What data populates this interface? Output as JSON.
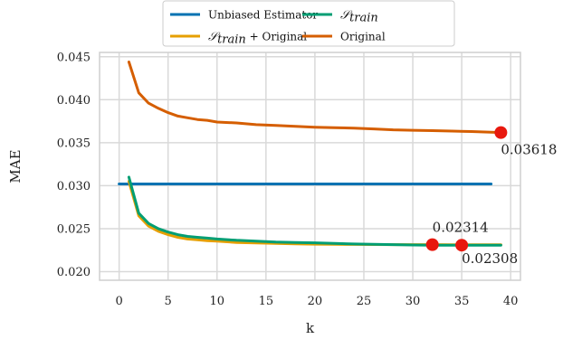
{
  "chart_data": {
    "type": "line",
    "xlabel": "k",
    "ylabel": "MAE",
    "xlim": [
      -2,
      41
    ],
    "ylim": [
      0.019,
      0.0455
    ],
    "xticks": [
      0,
      5,
      10,
      15,
      20,
      25,
      30,
      35,
      40
    ],
    "yticks": [
      0.02,
      0.025,
      0.03,
      0.035,
      0.04,
      0.045
    ],
    "ytick_labels": [
      "0.020",
      "0.025",
      "0.030",
      "0.035",
      "0.040",
      "0.045"
    ],
    "xtick_labels": [
      "0",
      "5",
      "10",
      "15",
      "20",
      "25",
      "30",
      "35",
      "40"
    ],
    "grid": true,
    "legend_placement": "top-center",
    "series": [
      {
        "name": "Unbiased Estimator",
        "color": "#0072B2",
        "x": [
          0,
          38
        ],
        "y": [
          0.0302,
          0.0302
        ]
      },
      {
        "name": "S_train + Original",
        "color": "#E69F00",
        "x": [
          1,
          2,
          3,
          4,
          5,
          6,
          7,
          8,
          9,
          10,
          12,
          14,
          16,
          18,
          20,
          22,
          24,
          26,
          28,
          30,
          32,
          34,
          36,
          38,
          39
        ],
        "y": [
          0.0305,
          0.0265,
          0.0253,
          0.0247,
          0.0243,
          0.024,
          0.0238,
          0.0237,
          0.0236,
          0.02355,
          0.0234,
          0.02333,
          0.02328,
          0.02324,
          0.0232,
          0.02318,
          0.02316,
          0.02315,
          0.02314,
          0.02314,
          0.02314,
          0.02313,
          0.02313,
          0.02313,
          0.02313
        ]
      },
      {
        "name": "S_train",
        "color": "#009E73",
        "x": [
          1,
          2,
          3,
          4,
          5,
          6,
          7,
          8,
          9,
          10,
          12,
          14,
          16,
          18,
          20,
          22,
          24,
          26,
          28,
          30,
          32,
          34,
          36,
          38,
          39
        ],
        "y": [
          0.031,
          0.0268,
          0.0256,
          0.025,
          0.0246,
          0.0243,
          0.0241,
          0.024,
          0.0239,
          0.0238,
          0.02365,
          0.02355,
          0.02345,
          0.0234,
          0.02335,
          0.02328,
          0.02322,
          0.02318,
          0.02314,
          0.0231,
          0.02308,
          0.02308,
          0.02308,
          0.02308,
          0.02308
        ]
      },
      {
        "name": "Original",
        "color": "#D55E00",
        "x": [
          1,
          2,
          3,
          4,
          5,
          6,
          7,
          8,
          9,
          10,
          12,
          14,
          16,
          18,
          20,
          22,
          24,
          26,
          28,
          30,
          32,
          34,
          36,
          38,
          39
        ],
        "y": [
          0.0444,
          0.0408,
          0.0396,
          0.039,
          0.0385,
          0.0381,
          0.0379,
          0.0377,
          0.0376,
          0.0374,
          0.0373,
          0.0371,
          0.037,
          0.0369,
          0.0368,
          0.03675,
          0.0367,
          0.0366,
          0.0365,
          0.03645,
          0.0364,
          0.03635,
          0.0363,
          0.03622,
          0.03618
        ]
      }
    ],
    "markers": [
      {
        "x": 39,
        "y": 0.03618,
        "label": "0.03618",
        "color": "#e8180e"
      },
      {
        "x": 32,
        "y": 0.02314,
        "label": "0.02314",
        "color": "#e8180e"
      },
      {
        "x": 35,
        "y": 0.02308,
        "label": "0.02308",
        "color": "#e8180e"
      }
    ]
  },
  "legend": {
    "items": [
      {
        "label": "Unbiased Estimator",
        "color": "#0072B2",
        "math": false
      },
      {
        "label": "𝒮",
        "sub": "train",
        "color": "#009E73",
        "math": true,
        "suffix": ""
      },
      {
        "label": "𝒮",
        "sub": "train",
        "color": "#E69F00",
        "math": true,
        "suffix": " + Original"
      },
      {
        "label": "Original",
        "color": "#D55E00",
        "math": false
      }
    ]
  }
}
